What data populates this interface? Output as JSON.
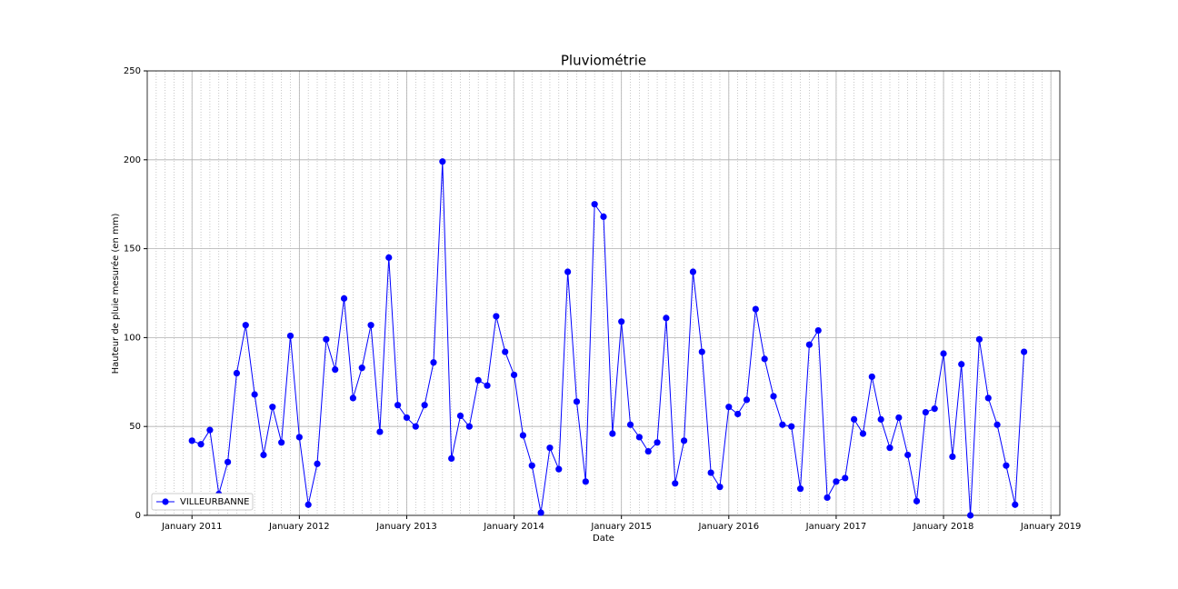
{
  "chart_data": {
    "type": "line",
    "title": "Pluviométrie",
    "xlabel": "Date",
    "ylabel": "Hauteur de pluie mesurée (en mm)",
    "x": [
      "2011-01",
      "2011-02",
      "2011-03",
      "2011-04",
      "2011-05",
      "2011-06",
      "2011-07",
      "2011-08",
      "2011-09",
      "2011-10",
      "2011-11",
      "2011-12",
      "2012-01",
      "2012-02",
      "2012-03",
      "2012-04",
      "2012-05",
      "2012-06",
      "2012-07",
      "2012-08",
      "2012-09",
      "2012-10",
      "2012-11",
      "2012-12",
      "2013-01",
      "2013-02",
      "2013-03",
      "2013-04",
      "2013-05",
      "2013-06",
      "2013-07",
      "2013-08",
      "2013-09",
      "2013-10",
      "2013-11",
      "2013-12",
      "2014-01",
      "2014-02",
      "2014-03",
      "2014-04",
      "2014-05",
      "2014-06",
      "2014-07",
      "2014-08",
      "2014-09",
      "2014-10",
      "2014-11",
      "2014-12",
      "2015-01",
      "2015-02",
      "2015-03",
      "2015-04",
      "2015-05",
      "2015-06",
      "2015-07",
      "2015-08",
      "2015-09",
      "2015-10",
      "2015-11",
      "2015-12",
      "2016-01",
      "2016-02",
      "2016-03",
      "2016-04",
      "2016-05",
      "2016-06",
      "2016-07",
      "2016-08",
      "2016-09",
      "2016-10",
      "2016-11",
      "2016-12",
      "2017-01",
      "2017-02",
      "2017-03",
      "2017-04",
      "2017-05",
      "2017-06",
      "2017-07",
      "2017-08",
      "2017-09",
      "2017-10",
      "2017-11",
      "2017-12",
      "2018-01",
      "2018-02",
      "2018-03",
      "2018-04",
      "2018-05",
      "2018-06",
      "2018-07",
      "2018-08",
      "2018-09",
      "2018-10"
    ],
    "series": [
      {
        "name": "VILLEURBANNE",
        "color": "#0000ff",
        "values": [
          42,
          40,
          48,
          12,
          30,
          80,
          107,
          68,
          34,
          61,
          41,
          101,
          44,
          6,
          29,
          99,
          82,
          122,
          66,
          83,
          107,
          47,
          145,
          62,
          55,
          50,
          62,
          86,
          199,
          32,
          56,
          50,
          76,
          73,
          112,
          92,
          79,
          45,
          28,
          1.5,
          38,
          26,
          137,
          64,
          19,
          175,
          168,
          46,
          109,
          51,
          44,
          36,
          41,
          111,
          18,
          42,
          137,
          92,
          24,
          16,
          61,
          57,
          65,
          116,
          88,
          67,
          51,
          50,
          15,
          96,
          104,
          10,
          19,
          21,
          54,
          46,
          78,
          54,
          38,
          55,
          34,
          8,
          58,
          60,
          91,
          33,
          85,
          0,
          99,
          66,
          51,
          28,
          6,
          92
        ]
      }
    ],
    "xlim": [
      "2010-08",
      "2019-02"
    ],
    "xticks": [
      {
        "value": "2011-01",
        "label": "January 2011"
      },
      {
        "value": "2012-01",
        "label": "January 2012"
      },
      {
        "value": "2013-01",
        "label": "January 2013"
      },
      {
        "value": "2014-01",
        "label": "January 2014"
      },
      {
        "value": "2015-01",
        "label": "January 2015"
      },
      {
        "value": "2016-01",
        "label": "January 2016"
      },
      {
        "value": "2017-01",
        "label": "January 2017"
      },
      {
        "value": "2018-01",
        "label": "January 2018"
      },
      {
        "value": "2019-01",
        "label": "January 2019"
      }
    ],
    "ylim": [
      0,
      250
    ],
    "yticks": [
      0,
      50,
      100,
      150,
      200,
      250
    ],
    "grid": true,
    "minor_grid": true,
    "legend": "lower left"
  }
}
